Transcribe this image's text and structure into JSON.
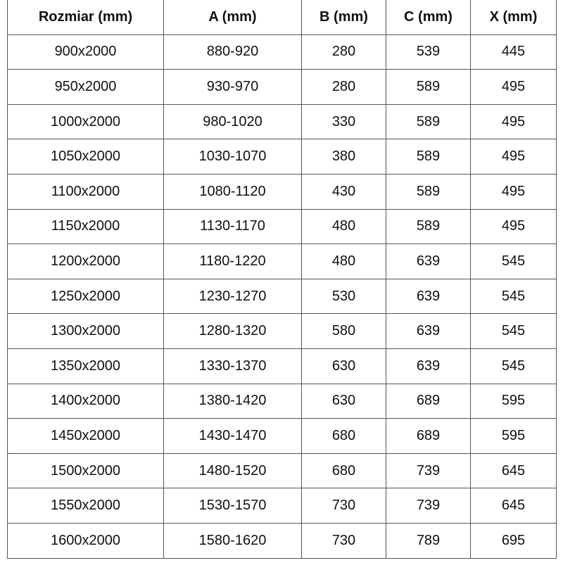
{
  "table": {
    "headers": [
      "Rozmiar (mm)",
      "A (mm)",
      "B (mm)",
      "C (mm)",
      "X (mm)"
    ],
    "rows": [
      [
        "900x2000",
        "880-920",
        "280",
        "539",
        "445"
      ],
      [
        "950x2000",
        "930-970",
        "280",
        "589",
        "495"
      ],
      [
        "1000x2000",
        "980-1020",
        "330",
        "589",
        "495"
      ],
      [
        "1050x2000",
        "1030-1070",
        "380",
        "589",
        "495"
      ],
      [
        "1100x2000",
        "1080-1120",
        "430",
        "589",
        "495"
      ],
      [
        "1150x2000",
        "1130-1170",
        "480",
        "589",
        "495"
      ],
      [
        "1200x2000",
        "1180-1220",
        "480",
        "639",
        "545"
      ],
      [
        "1250x2000",
        "1230-1270",
        "530",
        "639",
        "545"
      ],
      [
        "1300x2000",
        "1280-1320",
        "580",
        "639",
        "545"
      ],
      [
        "1350x2000",
        "1330-1370",
        "630",
        "639",
        "545"
      ],
      [
        "1400x2000",
        "1380-1420",
        "630",
        "689",
        "595"
      ],
      [
        "1450x2000",
        "1430-1470",
        "680",
        "689",
        "595"
      ],
      [
        "1500x2000",
        "1480-1520",
        "680",
        "739",
        "645"
      ],
      [
        "1550x2000",
        "1530-1570",
        "730",
        "739",
        "645"
      ],
      [
        "1600x2000",
        "1580-1620",
        "730",
        "789",
        "695"
      ]
    ]
  }
}
